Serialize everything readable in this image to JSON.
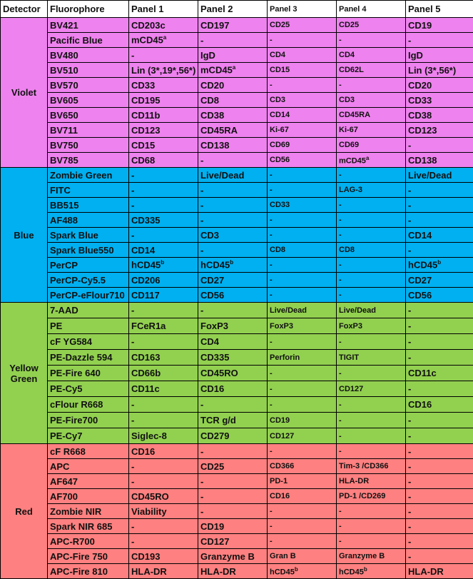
{
  "header": [
    "Detector",
    "Fluorophore",
    "Panel 1",
    "Panel 2",
    "Panel 3",
    "Panel 4",
    "Panel 5"
  ],
  "groups": [
    {
      "detector": "Violet",
      "rows": [
        {
          "fluorophore": "BV421",
          "cells": [
            "CD203c",
            "CD197",
            "CD25",
            "CD25",
            "CD19"
          ]
        },
        {
          "fluorophore": "Pacific Blue",
          "cells": [
            {
              "text": "mCD45",
              "sup": "a"
            },
            "-",
            "-",
            "-",
            "-"
          ]
        },
        {
          "fluorophore": "BV480",
          "cells": [
            "-",
            "IgD",
            "CD4",
            "CD4",
            "IgD"
          ]
        },
        {
          "fluorophore": "BV510",
          "cells": [
            "Lin (3*,19*,56*)",
            {
              "text": "mCD45",
              "sup": "a"
            },
            "CD15",
            "CD62L",
            "Lin (3*,56*)"
          ]
        },
        {
          "fluorophore": "BV570",
          "cells": [
            "CD33",
            "CD20",
            "-",
            "-",
            "CD20"
          ]
        },
        {
          "fluorophore": "BV605",
          "cells": [
            "CD195",
            "CD8",
            "CD3",
            "CD3",
            "CD33"
          ]
        },
        {
          "fluorophore": "BV650",
          "cells": [
            "CD11b",
            "CD38",
            "CD14",
            "CD45RA",
            "CD38"
          ]
        },
        {
          "fluorophore": "BV711",
          "cells": [
            "CD123",
            "CD45RA",
            "Ki-67",
            "Ki-67",
            "CD123"
          ]
        },
        {
          "fluorophore": "BV750",
          "cells": [
            "CD15",
            "CD138",
            "CD69",
            "CD69",
            "-"
          ]
        },
        {
          "fluorophore": "BV785",
          "cells": [
            "CD68",
            "-",
            "CD56",
            {
              "text": "mCD45",
              "sup": "a"
            },
            "CD138"
          ]
        }
      ]
    },
    {
      "detector": "Blue",
      "rows": [
        {
          "fluorophore": "Zombie Green",
          "cells": [
            "-",
            "Live/Dead",
            "-",
            "-",
            "Live/Dead"
          ]
        },
        {
          "fluorophore": "FITC",
          "cells": [
            "-",
            "-",
            "-",
            "LAG-3",
            "-"
          ]
        },
        {
          "fluorophore": "BB515",
          "cells": [
            "-",
            "-",
            "CD33",
            "-",
            "-"
          ]
        },
        {
          "fluorophore": "AF488",
          "cells": [
            "CD335",
            "-",
            "-",
            "-",
            "-"
          ]
        },
        {
          "fluorophore": "Spark Blue",
          "cells": [
            "-",
            "CD3",
            "-",
            "-",
            "CD14"
          ]
        },
        {
          "fluorophore": "Spark Blue550",
          "cells": [
            "CD14",
            "-",
            "CD8",
            "CD8",
            "-"
          ]
        },
        {
          "fluorophore": "PerCP",
          "cells": [
            {
              "text": "hCD45",
              "sup": "b"
            },
            {
              "text": "hCD45",
              "sup": "b"
            },
            "-",
            "-",
            {
              "text": "hCD45",
              "sup": "b"
            }
          ]
        },
        {
          "fluorophore": "PerCP-Cy5.5",
          "cells": [
            "CD206",
            "CD27",
            "-",
            "-",
            "CD27"
          ]
        },
        {
          "fluorophore": "PerCP-eFlour710",
          "cells": [
            "CD117",
            "CD56",
            "-",
            "-",
            "CD56"
          ]
        }
      ]
    },
    {
      "detector": "Yellow Green",
      "rows": [
        {
          "fluorophore": "7-AAD",
          "cells": [
            "-",
            "-",
            "Live/Dead",
            "Live/Dead",
            "-"
          ]
        },
        {
          "fluorophore": "PE",
          "cells": [
            "FCeR1a",
            "FoxP3",
            "FoxP3",
            "FoxP3",
            "-"
          ]
        },
        {
          "fluorophore": "cF YG584",
          "cells": [
            "-",
            "CD4",
            "-",
            "-",
            "-"
          ]
        },
        {
          "fluorophore": "PE-Dazzle 594",
          "cells": [
            "CD163",
            "CD335",
            "Perforin",
            "TIGIT",
            "-"
          ]
        },
        {
          "fluorophore": "PE-Fire 640",
          "cells": [
            "CD66b",
            "CD45RO",
            "-",
            "-",
            "CD11c"
          ]
        },
        {
          "fluorophore": "PE-Cy5",
          "cells": [
            "CD11c",
            "CD16",
            "-",
            "CD127",
            "-"
          ]
        },
        {
          "fluorophore": "cFlour R668",
          "cells": [
            "-",
            "-",
            "-",
            "-",
            "CD16"
          ]
        },
        {
          "fluorophore": "PE-Fire700",
          "cells": [
            "-",
            "TCR g/d",
            "CD19",
            "-",
            "-"
          ]
        },
        {
          "fluorophore": "PE-Cy7",
          "cells": [
            "Siglec-8",
            "CD279",
            "CD127",
            "-",
            "-"
          ]
        }
      ]
    },
    {
      "detector": "Red",
      "rows": [
        {
          "fluorophore": "cF R668",
          "cells": [
            "CD16",
            "-",
            "-",
            "-",
            "-"
          ]
        },
        {
          "fluorophore": "APC",
          "cells": [
            "-",
            "CD25",
            "CD366",
            "Tim-3 /CD366",
            "-"
          ]
        },
        {
          "fluorophore": "AF647",
          "cells": [
            "-",
            "-",
            "PD-1",
            "HLA-DR",
            "-"
          ]
        },
        {
          "fluorophore": "AF700",
          "cells": [
            "CD45RO",
            "-",
            "CD16",
            "PD-1 /CD269",
            "-"
          ]
        },
        {
          "fluorophore": "Zombie NIR",
          "cells": [
            "Viability",
            "-",
            "-",
            "-",
            "-"
          ]
        },
        {
          "fluorophore": "Spark NIR 685",
          "cells": [
            "-",
            "CD19",
            "-",
            "-",
            "-"
          ]
        },
        {
          "fluorophore": "APC-R700",
          "cells": [
            "-",
            "CD127",
            "-",
            "-",
            "-"
          ]
        },
        {
          "fluorophore": "APC-Fire 750",
          "cells": [
            "CD193",
            "Granzyme B",
            "Gran B",
            "Granzyme B",
            "-"
          ]
        },
        {
          "fluorophore": "APC-Fire 810",
          "cells": [
            "HLA-DR",
            "HLA-DR",
            {
              "text": "hCD45",
              "sup": "b"
            },
            {
              "text": "hCD45",
              "sup": "b"
            },
            "HLA-DR"
          ]
        }
      ]
    }
  ]
}
